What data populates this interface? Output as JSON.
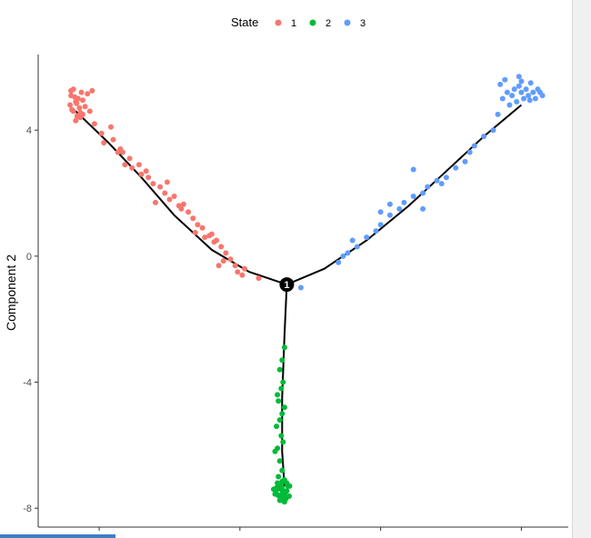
{
  "chart_data": {
    "type": "scatter",
    "title": "",
    "xlabel": "",
    "ylabel": "Component 2",
    "ylim": [
      -8.6,
      6.4
    ],
    "yticks": [
      -8,
      -4,
      0,
      4
    ],
    "ytick_labels": [
      "-8",
      "-4",
      "0",
      "4"
    ],
    "grid": false,
    "legend": {
      "title": "State",
      "position": "top",
      "entries": [
        "1",
        "2",
        "3"
      ]
    },
    "colors": {
      "1": "#F8766D",
      "2": "#00BA38",
      "3": "#619CFF",
      "trajectory": "#000000",
      "branch_point": "#000000"
    },
    "branch_point": {
      "x": 0.0,
      "y": -0.9,
      "label": "1"
    },
    "trajectory": [
      {
        "state": "1",
        "points": [
          [
            0.0,
            -0.9
          ],
          [
            -0.8,
            -0.5
          ],
          [
            -1.6,
            0.2
          ],
          [
            -2.4,
            1.3
          ],
          [
            -3.1,
            2.5
          ],
          [
            -3.8,
            3.6
          ],
          [
            -4.5,
            4.6
          ]
        ]
      },
      {
        "state": "2",
        "points": [
          [
            0.0,
            -0.9
          ],
          [
            -0.05,
            -2.5
          ],
          [
            -0.1,
            -4.5
          ],
          [
            -0.1,
            -6.2
          ],
          [
            -0.05,
            -7.3
          ]
        ]
      },
      {
        "state": "3",
        "points": [
          [
            0.0,
            -0.9
          ],
          [
            0.8,
            -0.4
          ],
          [
            1.7,
            0.5
          ],
          [
            2.6,
            1.6
          ],
          [
            3.4,
            2.7
          ],
          [
            4.2,
            3.8
          ],
          [
            5.0,
            4.8
          ]
        ]
      }
    ],
    "series": [
      {
        "name": "1",
        "x": [
          -4.55,
          -4.6,
          -4.45,
          -4.5,
          -4.38,
          -4.62,
          -4.42,
          -4.55,
          -4.35,
          -4.48,
          -4.3,
          -4.52,
          -4.4,
          -4.58,
          -4.25,
          -4.47,
          -4.35,
          -4.6,
          -4.2,
          -4.4,
          -4.5,
          -4.1,
          -3.95,
          -3.9,
          -3.7,
          -3.75,
          -3.55,
          -3.5,
          -3.35,
          -3.3,
          -3.15,
          -3.1,
          -2.95,
          -2.85,
          -2.7,
          -2.6,
          -2.5,
          -2.4,
          -2.3,
          -2.25,
          -2.1,
          -2.0,
          -1.9,
          -1.8,
          -1.75,
          -1.6,
          -1.5,
          -1.4,
          -1.3,
          -1.2,
          -0.6,
          -0.9,
          -2.2,
          -1.95,
          -3.0,
          -2.55,
          -1.65,
          -4.15,
          -3.6,
          -2.8,
          -1.45,
          -0.95,
          -3.45,
          -1.55,
          -1.1,
          -1.05,
          -1.35
        ],
        "y": [
          5.3,
          5.1,
          5.0,
          4.9,
          5.2,
          4.8,
          4.7,
          4.6,
          4.95,
          4.85,
          4.75,
          5.05,
          4.55,
          4.65,
          5.15,
          4.45,
          4.5,
          5.25,
          4.6,
          4.4,
          4.3,
          4.2,
          3.9,
          3.6,
          3.7,
          4.1,
          3.4,
          3.3,
          3.1,
          2.8,
          2.9,
          2.6,
          2.5,
          2.3,
          2.2,
          2.0,
          1.8,
          1.9,
          1.6,
          1.5,
          1.4,
          1.2,
          1.0,
          0.9,
          0.6,
          0.7,
          0.5,
          0.3,
          0.1,
          -0.1,
          -0.7,
          -0.4,
          1.65,
          0.75,
          2.7,
          2.35,
          0.65,
          5.25,
          3.3,
          1.7,
          -0.3,
          -0.6,
          2.9,
          0.45,
          -0.3,
          -0.5,
          -0.15
        ]
      },
      {
        "name": "2",
        "x": [
          -0.05,
          -0.1,
          -0.15,
          -0.08,
          -0.12,
          -0.2,
          -0.18,
          -0.05,
          -0.1,
          -0.15,
          -0.22,
          -0.12,
          -0.08,
          -0.2,
          -0.25,
          -0.15,
          -0.1,
          -0.18,
          -0.05,
          0.0,
          -0.12,
          -0.15,
          -0.1,
          -0.2,
          -0.08,
          -0.03,
          -0.25,
          -0.18,
          0.05,
          -0.1,
          -0.02,
          -0.15,
          -0.05,
          -0.2,
          -0.1,
          0.02,
          -0.12,
          -0.08,
          -0.22,
          -0.15,
          -0.05,
          0.0,
          -0.1,
          -0.18,
          -0.04,
          -0.28,
          0.06,
          -0.14,
          -0.22
        ],
        "y": [
          -2.9,
          -3.3,
          -3.6,
          -4.0,
          -4.2,
          -4.4,
          -4.6,
          -4.8,
          -5.0,
          -5.2,
          -5.4,
          -5.7,
          -5.9,
          -6.1,
          -6.2,
          -6.5,
          -6.8,
          -7.0,
          -7.1,
          -7.2,
          -7.25,
          -7.3,
          -7.35,
          -7.4,
          -7.45,
          -7.5,
          -7.55,
          -7.6,
          -7.62,
          -7.65,
          -7.7,
          -7.75,
          -7.8,
          -7.2,
          -7.15,
          -7.3,
          -7.4,
          -7.5,
          -7.35,
          -7.6,
          -7.7,
          -7.45,
          -7.55,
          -7.25,
          -7.65,
          -7.4,
          -7.3,
          -7.75,
          -7.55
        ]
      },
      {
        "name": "3",
        "x": [
          0.3,
          1.1,
          1.2,
          1.3,
          1.5,
          1.7,
          1.9,
          2.0,
          2.2,
          2.4,
          2.5,
          2.7,
          2.9,
          3.0,
          3.2,
          3.4,
          3.6,
          3.8,
          3.9,
          4.0,
          4.2,
          4.4,
          4.5,
          4.6,
          4.7,
          4.8,
          4.85,
          4.9,
          4.95,
          5.0,
          5.05,
          5.1,
          5.15,
          5.2,
          5.25,
          5.3,
          5.35,
          5.4,
          4.75,
          4.65,
          5.45,
          4.95,
          5.18,
          4.55,
          5.0,
          2.0,
          2.9,
          3.3,
          1.4,
          2.2,
          2.7
        ],
        "y": [
          -1.0,
          -0.2,
          0.0,
          0.1,
          0.3,
          0.6,
          0.8,
          1.0,
          1.3,
          1.5,
          1.7,
          1.9,
          2.0,
          2.2,
          2.4,
          2.5,
          2.8,
          3.0,
          3.3,
          3.5,
          3.8,
          4.0,
          4.5,
          5.0,
          5.2,
          5.1,
          5.3,
          4.9,
          5.4,
          5.2,
          5.0,
          5.3,
          5.1,
          5.5,
          5.2,
          5.0,
          5.3,
          5.2,
          4.8,
          5.6,
          5.1,
          5.7,
          4.95,
          5.45,
          5.55,
          1.4,
          1.5,
          2.3,
          0.5,
          1.65,
          2.75
        ]
      }
    ]
  }
}
